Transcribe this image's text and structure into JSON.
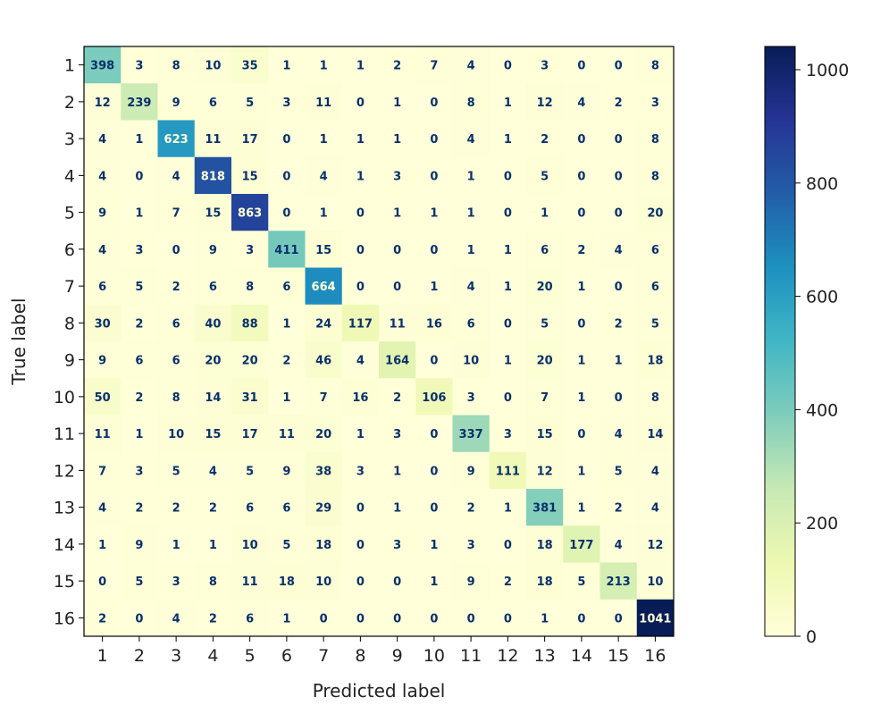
{
  "chart_data": {
    "type": "heatmap",
    "title": "",
    "xlabel": "Predicted label",
    "ylabel": "True label",
    "x_categories": [
      "1",
      "2",
      "3",
      "4",
      "5",
      "6",
      "7",
      "8",
      "9",
      "10",
      "11",
      "12",
      "13",
      "14",
      "15",
      "16"
    ],
    "y_categories": [
      "1",
      "2",
      "3",
      "4",
      "5",
      "6",
      "7",
      "8",
      "9",
      "10",
      "11",
      "12",
      "13",
      "14",
      "15",
      "16"
    ],
    "values": [
      [
        398,
        3,
        8,
        10,
        35,
        1,
        1,
        1,
        2,
        7,
        4,
        0,
        3,
        0,
        0,
        8
      ],
      [
        12,
        239,
        9,
        6,
        5,
        3,
        11,
        0,
        1,
        0,
        8,
        1,
        12,
        4,
        2,
        3
      ],
      [
        4,
        1,
        623,
        11,
        17,
        0,
        1,
        1,
        1,
        0,
        4,
        1,
        2,
        0,
        0,
        8
      ],
      [
        4,
        0,
        4,
        818,
        15,
        0,
        4,
        1,
        3,
        0,
        1,
        0,
        5,
        0,
        0,
        8
      ],
      [
        9,
        1,
        7,
        15,
        863,
        0,
        1,
        0,
        1,
        1,
        1,
        0,
        1,
        0,
        0,
        20
      ],
      [
        4,
        3,
        0,
        9,
        3,
        411,
        15,
        0,
        0,
        0,
        1,
        1,
        6,
        2,
        4,
        6
      ],
      [
        6,
        5,
        2,
        6,
        8,
        6,
        664,
        0,
        0,
        1,
        4,
        1,
        20,
        1,
        0,
        6
      ],
      [
        30,
        2,
        6,
        40,
        88,
        1,
        24,
        117,
        11,
        16,
        6,
        0,
        5,
        0,
        2,
        5
      ],
      [
        9,
        6,
        6,
        20,
        20,
        2,
        46,
        4,
        164,
        0,
        10,
        1,
        20,
        1,
        1,
        18
      ],
      [
        50,
        2,
        8,
        14,
        31,
        1,
        7,
        16,
        2,
        106,
        3,
        0,
        7,
        1,
        0,
        8
      ],
      [
        11,
        1,
        10,
        15,
        17,
        11,
        20,
        1,
        3,
        0,
        337,
        3,
        15,
        0,
        4,
        14
      ],
      [
        7,
        3,
        5,
        4,
        5,
        9,
        38,
        3,
        1,
        0,
        9,
        111,
        12,
        1,
        5,
        4
      ],
      [
        4,
        2,
        2,
        2,
        6,
        6,
        29,
        0,
        1,
        0,
        2,
        1,
        381,
        1,
        2,
        4
      ],
      [
        1,
        9,
        1,
        1,
        10,
        5,
        18,
        0,
        3,
        1,
        3,
        0,
        18,
        177,
        4,
        12
      ],
      [
        0,
        5,
        3,
        8,
        11,
        18,
        10,
        0,
        0,
        1,
        9,
        2,
        18,
        5,
        213,
        10
      ],
      [
        2,
        0,
        4,
        2,
        6,
        1,
        0,
        0,
        0,
        0,
        0,
        0,
        1,
        0,
        0,
        1041
      ]
    ],
    "colormap": "YlGnBu",
    "colormap_stops": [
      "#ffffd9",
      "#edf8b1",
      "#c7e9b4",
      "#7fcdbb",
      "#41b6c4",
      "#1d91c0",
      "#225ea8",
      "#253494",
      "#081d58"
    ],
    "vmin": 0,
    "vmax": 1041,
    "colorbar_ticks": [
      0,
      200,
      400,
      600,
      800,
      1000
    ],
    "colorbar_tick_labels": [
      "0",
      "200",
      "400",
      "600",
      "800",
      "1000"
    ],
    "grid": false,
    "legend": "colorbar-right",
    "text_color_dark": "#08306b",
    "text_color_light": "#ffffd9"
  }
}
